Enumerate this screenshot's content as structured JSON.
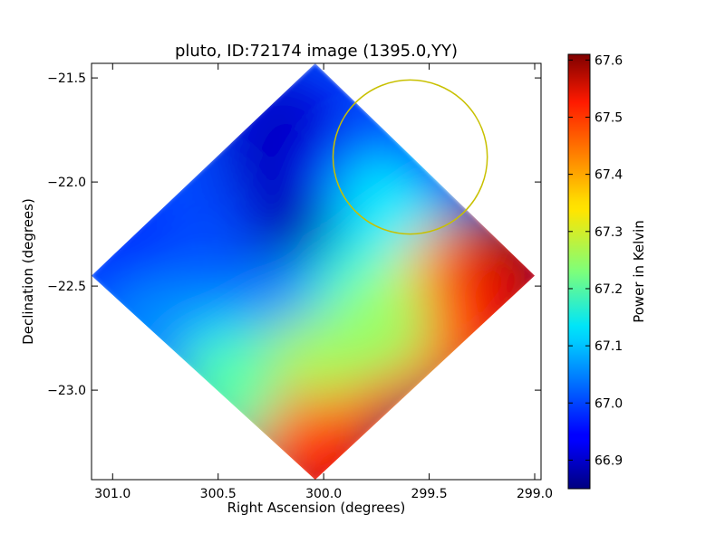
{
  "chart_data": {
    "type": "heatmap",
    "title": "pluto, ID:72174 image (1395.0,YY)",
    "xlabel": "Right Ascension (degrees)",
    "ylabel": "Declination (degrees)",
    "x_axis_inverted": true,
    "xlim": [
      301.1,
      298.97
    ],
    "ylim": [
      -23.43,
      -21.43
    ],
    "xticks": [
      {
        "value": 301.0,
        "label": "301.0"
      },
      {
        "value": 300.5,
        "label": "300.5"
      },
      {
        "value": 300.0,
        "label": "300.0"
      },
      {
        "value": 299.5,
        "label": "299.5"
      },
      {
        "value": 299.0,
        "label": "299.0"
      }
    ],
    "yticks": [
      {
        "value": -21.5,
        "label": "−21.5"
      },
      {
        "value": -22.0,
        "label": "−22.0"
      },
      {
        "value": -22.5,
        "label": "−22.5"
      },
      {
        "value": -23.0,
        "label": "−23.0"
      }
    ],
    "footprint_corners_deg": [
      {
        "ra": 300.04,
        "dec": -21.43
      },
      {
        "ra": 299.0,
        "dec": -22.45
      },
      {
        "ra": 300.04,
        "dec": -23.43
      },
      {
        "ra": 301.1,
        "dec": -22.45
      }
    ],
    "regions": [
      {
        "ra": 300.05,
        "dec": -21.9,
        "value": 66.86
      },
      {
        "ra": 300.2,
        "dec": -21.75,
        "value": 66.9
      },
      {
        "ra": 300.35,
        "dec": -22.1,
        "value": 66.9
      },
      {
        "ra": 300.05,
        "dec": -22.3,
        "value": 66.88
      },
      {
        "ra": 299.85,
        "dec": -21.95,
        "value": 66.95
      },
      {
        "ra": 300.6,
        "dec": -22.2,
        "value": 67.0
      },
      {
        "ra": 300.9,
        "dec": -22.4,
        "value": 66.97
      },
      {
        "ra": 300.6,
        "dec": -22.6,
        "value": 67.02
      },
      {
        "ra": 300.8,
        "dec": -22.7,
        "value": 67.05
      },
      {
        "ra": 300.4,
        "dec": -22.85,
        "value": 67.12
      },
      {
        "ra": 300.15,
        "dec": -22.6,
        "value": 67.05
      },
      {
        "ra": 299.8,
        "dec": -22.5,
        "value": 67.15
      },
      {
        "ra": 299.6,
        "dec": -22.25,
        "value": 67.18
      },
      {
        "ra": 299.7,
        "dec": -22.1,
        "value": 67.12
      },
      {
        "ra": 299.45,
        "dec": -22.5,
        "value": 67.32
      },
      {
        "ra": 299.3,
        "dec": -22.4,
        "value": 67.45
      },
      {
        "ra": 299.1,
        "dec": -22.45,
        "value": 67.56
      },
      {
        "ra": 299.3,
        "dec": -22.7,
        "value": 67.5
      },
      {
        "ra": 299.55,
        "dec": -22.85,
        "value": 67.43
      },
      {
        "ra": 299.8,
        "dec": -23.0,
        "value": 67.47
      },
      {
        "ra": 300.1,
        "dec": -22.9,
        "value": 67.26
      },
      {
        "ra": 300.2,
        "dec": -23.2,
        "value": 67.42
      },
      {
        "ra": 300.0,
        "dec": -23.35,
        "value": 67.5
      },
      {
        "ra": 300.45,
        "dec": -23.0,
        "value": 67.2
      },
      {
        "ra": 299.75,
        "dec": -22.7,
        "value": 67.25
      }
    ],
    "annotations": [
      {
        "type": "circle",
        "ra_center": 299.59,
        "dec_center": -21.88,
        "radius_dec_deg": 0.37,
        "color": "#c8c000"
      }
    ],
    "colorbar": {
      "label": "Power in Kelvin",
      "min": 66.85,
      "max": 67.61,
      "ticks": [
        {
          "value": 66.9,
          "label": "66.9"
        },
        {
          "value": 67.0,
          "label": "67.0"
        },
        {
          "value": 67.1,
          "label": "67.1"
        },
        {
          "value": 67.2,
          "label": "67.2"
        },
        {
          "value": 67.3,
          "label": "67.3"
        },
        {
          "value": 67.4,
          "label": "67.4"
        },
        {
          "value": 67.5,
          "label": "67.5"
        },
        {
          "value": 67.6,
          "label": "67.6"
        }
      ],
      "colormap": "jet"
    }
  }
}
